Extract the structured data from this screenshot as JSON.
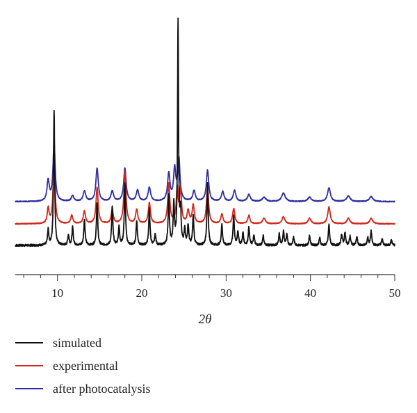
{
  "chart_data": {
    "type": "line",
    "xlabel": "2θ",
    "ylabel": "",
    "xlim": [
      5,
      50
    ],
    "xticks": [
      10,
      20,
      30,
      40,
      50
    ],
    "yticks": "none",
    "grid": false,
    "legend_position": "bottom-left",
    "series": [
      {
        "name": "simulated",
        "color": "#111111",
        "offset": 0,
        "baseline": 3,
        "noise": 1.5,
        "peaks": [
          [
            8.9,
            22,
            0.09
          ],
          [
            9.6,
            195,
            0.08
          ],
          [
            11.3,
            15,
            0.09
          ],
          [
            11.8,
            26,
            0.09
          ],
          [
            13.2,
            38,
            0.09
          ],
          [
            14.7,
            62,
            0.09
          ],
          [
            16.5,
            55,
            0.09
          ],
          [
            17.3,
            26,
            0.09
          ],
          [
            18.0,
            88,
            0.09
          ],
          [
            19.4,
            35,
            0.09
          ],
          [
            20.9,
            52,
            0.09
          ],
          [
            21.6,
            15,
            0.09
          ],
          [
            23.2,
            70,
            0.09
          ],
          [
            23.8,
            58,
            0.09
          ],
          [
            24.3,
            320,
            0.07
          ],
          [
            24.6,
            46,
            0.08
          ],
          [
            25.1,
            22,
            0.09
          ],
          [
            25.5,
            28,
            0.09
          ],
          [
            26.1,
            42,
            0.09
          ],
          [
            27.8,
            88,
            0.09
          ],
          [
            29.5,
            30,
            0.09
          ],
          [
            30.9,
            43,
            0.09
          ],
          [
            31.4,
            20,
            0.09
          ],
          [
            32.0,
            18,
            0.09
          ],
          [
            32.7,
            26,
            0.09
          ],
          [
            33.3,
            14,
            0.09
          ],
          [
            34.4,
            14,
            0.09
          ],
          [
            36.3,
            16,
            0.09
          ],
          [
            36.8,
            20,
            0.09
          ],
          [
            37.2,
            15,
            0.09
          ],
          [
            38.0,
            12,
            0.09
          ],
          [
            39.9,
            14,
            0.09
          ],
          [
            41.1,
            11,
            0.09
          ],
          [
            42.2,
            30,
            0.09
          ],
          [
            43.7,
            16,
            0.09
          ],
          [
            44.1,
            18,
            0.09
          ],
          [
            44.7,
            13,
            0.09
          ],
          [
            45.5,
            12,
            0.09
          ],
          [
            46.8,
            11,
            0.09
          ],
          [
            47.2,
            20,
            0.09
          ],
          [
            48.5,
            10,
            0.09
          ],
          [
            49.6,
            8,
            0.09
          ]
        ]
      },
      {
        "name": "experimental",
        "color": "#d0281c",
        "offset": 32,
        "baseline": 2,
        "noise": 0.6,
        "peaks": [
          [
            8.9,
            22,
            0.13
          ],
          [
            9.6,
            100,
            0.13
          ],
          [
            11.7,
            12,
            0.15
          ],
          [
            13.2,
            18,
            0.15
          ],
          [
            14.7,
            52,
            0.15
          ],
          [
            16.5,
            20,
            0.15
          ],
          [
            18.0,
            75,
            0.15
          ],
          [
            19.4,
            20,
            0.15
          ],
          [
            20.9,
            30,
            0.15
          ],
          [
            23.2,
            58,
            0.15
          ],
          [
            24.2,
            50,
            0.13
          ],
          [
            24.6,
            48,
            0.13
          ],
          [
            25.5,
            18,
            0.15
          ],
          [
            26.1,
            26,
            0.15
          ],
          [
            27.8,
            52,
            0.15
          ],
          [
            29.5,
            14,
            0.15
          ],
          [
            30.9,
            22,
            0.15
          ],
          [
            32.7,
            12,
            0.15
          ],
          [
            34.5,
            8,
            0.2
          ],
          [
            36.8,
            10,
            0.2
          ],
          [
            39.9,
            8,
            0.2
          ],
          [
            42.2,
            24,
            0.18
          ],
          [
            44.5,
            8,
            0.2
          ],
          [
            47.2,
            8,
            0.2
          ]
        ]
      },
      {
        "name": "after photocatalysis",
        "color": "#2f2fa0",
        "offset": 64,
        "baseline": 2,
        "noise": 0.6,
        "peaks": [
          [
            8.9,
            30,
            0.16
          ],
          [
            9.6,
            85,
            0.15
          ],
          [
            11.8,
            8,
            0.18
          ],
          [
            13.2,
            15,
            0.18
          ],
          [
            14.7,
            48,
            0.17
          ],
          [
            16.5,
            15,
            0.18
          ],
          [
            18.0,
            48,
            0.17
          ],
          [
            19.5,
            16,
            0.18
          ],
          [
            20.9,
            20,
            0.18
          ],
          [
            23.2,
            40,
            0.17
          ],
          [
            23.9,
            45,
            0.16
          ],
          [
            24.4,
            60,
            0.16
          ],
          [
            26.2,
            15,
            0.18
          ],
          [
            27.8,
            45,
            0.17
          ],
          [
            29.6,
            14,
            0.18
          ],
          [
            31.0,
            16,
            0.18
          ],
          [
            32.7,
            10,
            0.2
          ],
          [
            34.5,
            6,
            0.25
          ],
          [
            36.8,
            12,
            0.25
          ],
          [
            39.9,
            6,
            0.25
          ],
          [
            42.2,
            20,
            0.2
          ],
          [
            44.5,
            8,
            0.25
          ],
          [
            47.2,
            7,
            0.25
          ]
        ]
      }
    ]
  }
}
